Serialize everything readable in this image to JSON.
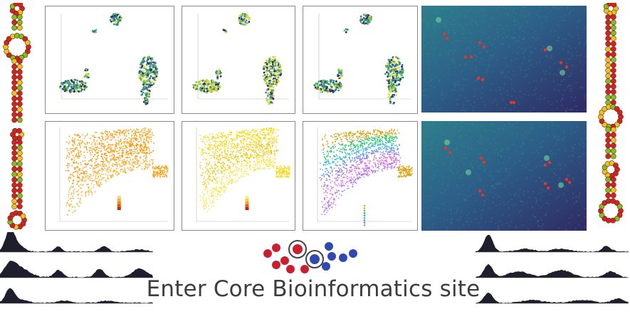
{
  "site_link": {
    "label": "Enter Core Bioinformatics site"
  },
  "colors": {
    "umap_bg": "#ffffff",
    "spatial_orange": "#f39c12",
    "spatial_yellow": "#f2d61a",
    "fish_bg_dark": "#2f2a63",
    "fish_bg_teal": "#2f8c8a",
    "fish_spot": "#e8342b",
    "hairpin_red": "#c8281f",
    "hairpin_green": "#7cc21f",
    "hairpin_yellow": "#e8c41e",
    "logo_red": "#c8202e",
    "logo_blue": "#2f49b0",
    "track_fill": "#1e1e2c"
  },
  "icons": [
    "rna-hairpin-icon",
    "molecule-cluster-logo-icon"
  ]
}
